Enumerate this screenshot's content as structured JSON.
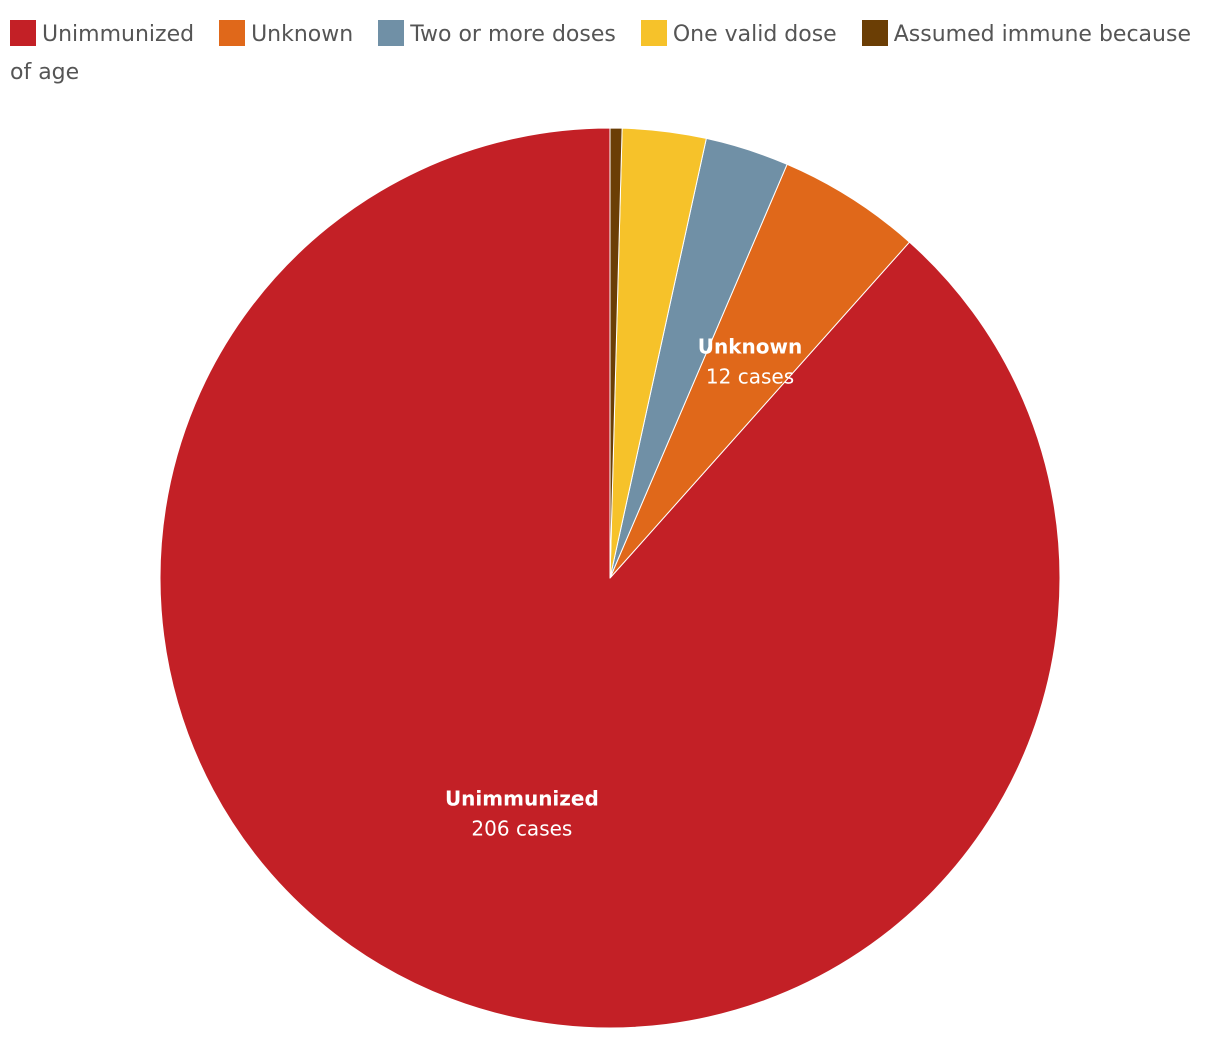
{
  "chart_data": {
    "type": "pie",
    "title": "",
    "legend_position": "top",
    "slices": [
      {
        "name": "Unimmunized",
        "value": 206,
        "color": "#c32026",
        "label_name": "Unimmunized",
        "label_value": "206 cases"
      },
      {
        "name": "Unknown",
        "value": 12,
        "color": "#e0681a",
        "label_name": "Unknown",
        "label_value": "12 cases"
      },
      {
        "name": "Two or more doses",
        "value": 7,
        "color": "#7090a6",
        "label_name": "",
        "label_value": ""
      },
      {
        "name": "One valid dose",
        "value": 7,
        "color": "#f6c22a",
        "label_name": "",
        "label_value": ""
      },
      {
        "name": "Assumed immune because of age",
        "value": 1,
        "color": "#6b3e05",
        "label_name": "",
        "label_value": ""
      }
    ]
  }
}
